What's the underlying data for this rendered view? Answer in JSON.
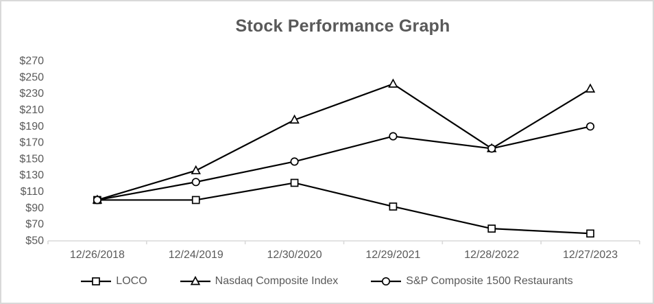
{
  "window": {
    "background_color": "#ffffff",
    "frame_border_color": "#d9d9d9"
  },
  "chart_data": {
    "type": "line",
    "title": "Stock Performance Graph",
    "categories": [
      "12/26/2018",
      "12/24/2019",
      "12/30/2020",
      "12/29/2021",
      "12/28/2022",
      "12/27/2023"
    ],
    "series": [
      {
        "name": "LOCO",
        "marker": "square",
        "values": [
          100,
          100,
          121,
          92,
          65,
          59
        ]
      },
      {
        "name": "Nasdaq Composite Index",
        "marker": "triangle",
        "values": [
          100,
          136,
          198,
          242,
          163,
          236
        ]
      },
      {
        "name": "S&P Composite 1500 Restaurants",
        "marker": "circle",
        "values": [
          100,
          122,
          147,
          178,
          163,
          190
        ]
      }
    ],
    "y_axis": {
      "min": 50,
      "max": 270,
      "step": 20,
      "tick_prefix": "$",
      "tick_labels": [
        "$270",
        "$250",
        "$230",
        "$210",
        "$190",
        "$170",
        "$150",
        "$130",
        "$110",
        "$90",
        "$70",
        "$50"
      ]
    },
    "ylim": [
      50,
      270
    ],
    "grid": false,
    "legend_position": "bottom",
    "styles": {
      "series_line_color": "#000000",
      "marker_fill_color": "#ffffff",
      "axis_line_color": "#d9d9d9",
      "text_color": "#595959",
      "title_color": "#595959"
    }
  }
}
